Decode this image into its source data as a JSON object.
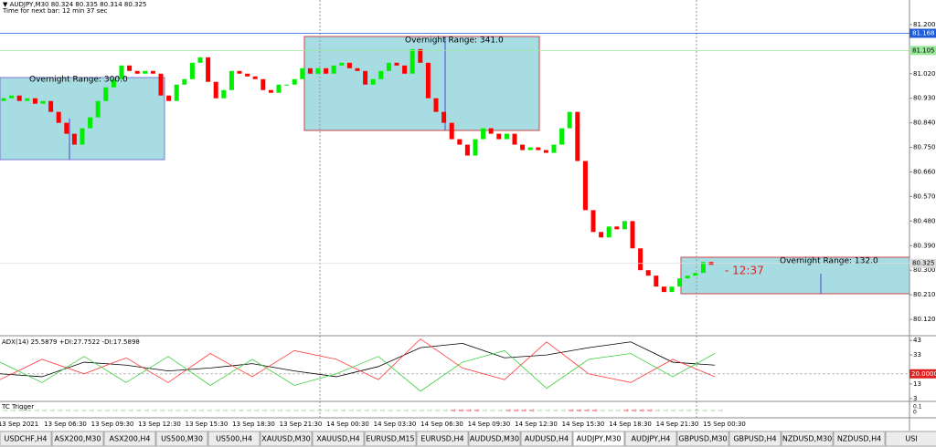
{
  "chart_data": {
    "type": "candlestick",
    "header": "▼ AUDJPY,M30  80.324 80.335 80.314 80.325",
    "subheader": "Time for next bar: 12 min 37 sec",
    "annotations": [
      "Overnight Range: 300.0",
      "Overnight Range: 341.0",
      "Overnight Range: 132.0"
    ],
    "countdown": "- 12:37",
    "up_color": "#00ee00",
    "down_color": "#ff0000",
    "ylim": [
      80.06,
      81.29
    ],
    "yticks": [
      {
        "value": 81.2,
        "label": "81.200"
      },
      {
        "value": 81.02,
        "label": "81.020"
      },
      {
        "value": 80.93,
        "label": "80.930"
      },
      {
        "value": 80.84,
        "label": "80.840"
      },
      {
        "value": 80.75,
        "label": "80.750"
      },
      {
        "value": 80.66,
        "label": "80.660"
      },
      {
        "value": 80.57,
        "label": "80.570"
      },
      {
        "value": 80.48,
        "label": "80.480"
      },
      {
        "value": 80.39,
        "label": "80.390"
      },
      {
        "value": 80.3,
        "label": "80.300"
      },
      {
        "value": 80.21,
        "label": "80.210"
      },
      {
        "value": 80.12,
        "label": "80.120"
      }
    ],
    "price_marks": [
      {
        "value": 81.168,
        "label": "81.168",
        "color": "#1e5bd8"
      },
      {
        "value": 81.105,
        "label": "81.105",
        "color": "#9be89b"
      },
      {
        "value": 80.325,
        "label": "80.325",
        "color": "#dddddd"
      }
    ],
    "candles": [
      [
        80.92,
        80.93
      ],
      [
        80.93,
        80.94
      ],
      [
        80.94,
        80.92
      ],
      [
        80.92,
        80.93
      ],
      [
        80.93,
        80.91
      ],
      [
        80.91,
        80.92
      ],
      [
        80.92,
        80.88
      ],
      [
        80.88,
        80.84
      ],
      [
        80.84,
        80.8
      ],
      [
        80.8,
        80.76
      ],
      [
        80.76,
        80.82
      ],
      [
        80.82,
        80.86
      ],
      [
        80.86,
        80.92
      ],
      [
        80.92,
        80.97
      ],
      [
        80.97,
        81.0
      ],
      [
        81.0,
        81.05
      ],
      [
        81.05,
        81.03
      ],
      [
        81.03,
        81.02
      ],
      [
        81.02,
        81.03
      ],
      [
        81.03,
        81.02
      ],
      [
        81.02,
        80.94
      ],
      [
        80.94,
        80.92
      ],
      [
        80.92,
        80.98
      ],
      [
        80.98,
        81.0
      ],
      [
        81.0,
        81.06
      ],
      [
        81.06,
        81.08
      ],
      [
        81.08,
        80.99
      ],
      [
        80.99,
        80.93
      ],
      [
        80.93,
        80.96
      ],
      [
        80.96,
        81.03
      ],
      [
        81.03,
        81.02
      ],
      [
        81.02,
        81.01
      ],
      [
        81.01,
        81.0
      ],
      [
        81.0,
        80.96
      ],
      [
        80.96,
        80.95
      ],
      [
        80.95,
        80.98
      ],
      [
        80.98,
        80.98
      ],
      [
        80.98,
        81.0
      ],
      [
        81.0,
        81.04
      ],
      [
        81.04,
        81.02
      ],
      [
        81.02,
        81.04
      ],
      [
        81.04,
        81.02
      ],
      [
        81.02,
        81.05
      ],
      [
        81.05,
        81.06
      ],
      [
        81.06,
        81.04
      ],
      [
        81.04,
        81.03
      ],
      [
        81.03,
        80.98
      ],
      [
        80.98,
        81.0
      ],
      [
        81.0,
        81.03
      ],
      [
        81.03,
        81.06
      ],
      [
        81.06,
        81.05
      ],
      [
        81.05,
        81.02
      ],
      [
        81.02,
        81.11
      ],
      [
        81.11,
        81.06
      ],
      [
        81.06,
        80.93
      ],
      [
        80.93,
        80.88
      ],
      [
        80.88,
        80.84
      ],
      [
        80.84,
        80.78
      ],
      [
        80.78,
        80.76
      ],
      [
        80.76,
        80.72
      ],
      [
        80.72,
        80.78
      ],
      [
        80.78,
        80.82
      ],
      [
        80.82,
        80.8
      ],
      [
        80.8,
        80.78
      ],
      [
        80.78,
        80.8
      ],
      [
        80.8,
        80.76
      ],
      [
        80.76,
        80.74
      ],
      [
        80.74,
        80.75
      ],
      [
        80.75,
        80.74
      ],
      [
        80.74,
        80.73
      ],
      [
        80.73,
        80.76
      ],
      [
        80.76,
        80.82
      ],
      [
        80.82,
        80.88
      ],
      [
        80.88,
        80.7
      ],
      [
        80.7,
        80.52
      ],
      [
        80.52,
        80.44
      ],
      [
        80.44,
        80.42
      ],
      [
        80.42,
        80.46
      ],
      [
        80.46,
        80.45
      ],
      [
        80.45,
        80.48
      ],
      [
        80.48,
        80.38
      ],
      [
        80.38,
        80.3
      ],
      [
        80.3,
        80.28
      ],
      [
        80.28,
        80.24
      ],
      [
        80.24,
        80.22
      ],
      [
        80.22,
        80.24
      ],
      [
        80.24,
        80.27
      ],
      [
        80.27,
        80.28
      ],
      [
        80.28,
        80.29
      ],
      [
        80.29,
        80.33
      ],
      [
        80.33,
        80.32
      ]
    ],
    "x_labels": [
      "13 Sep 2021",
      "13 Sep 06:30",
      "13 Sep 09:30",
      "13 Sep 12:30",
      "13 Sep 15:30",
      "13 Sep 18:30",
      "13 Sep 21:30",
      "14 Sep 00:30",
      "14 Sep 03:30",
      "14 Sep 06:30",
      "14 Sep 09:30",
      "14 Sep 12:30",
      "14 Sep 15:30",
      "14 Sep 18:30",
      "14 Sep 21:30",
      "15 Sep 00:30"
    ],
    "adx": {
      "title": "ADX(14) 25.5879 +DI:27.7522 -DI:17.5898",
      "ylim": [
        1,
        45
      ],
      "yticks": [
        43,
        33,
        13,
        3
      ],
      "level": {
        "value": 20,
        "label": "20.0000"
      },
      "series": [
        {
          "name": "ADX",
          "color": "#000000",
          "values": [
            20,
            18,
            28,
            26,
            22,
            24,
            27,
            22,
            18,
            25,
            38,
            41,
            31,
            33,
            38,
            42,
            28,
            26
          ]
        },
        {
          "name": "+DI",
          "color": "#ff3b3b",
          "values": [
            16,
            30,
            20,
            31,
            14,
            34,
            18,
            36,
            30,
            16,
            44,
            24,
            16,
            42,
            20,
            14,
            30,
            18
          ]
        },
        {
          "name": "-DI",
          "color": "#3ccf3c",
          "values": [
            28,
            14,
            32,
            14,
            32,
            12,
            30,
            12,
            20,
            32,
            8,
            28,
            36,
            10,
            30,
            34,
            18,
            34
          ]
        }
      ]
    },
    "trigger": {
      "title": "TC Trigger",
      "yticks": [
        {
          "value": 0.1,
          "label": "0.1"
        },
        {
          "value": 0,
          "label": "0"
        }
      ]
    },
    "tabs": [
      "USDCHF,H4",
      "ASX200,M30",
      "ASX200,H4",
      "US500,M30",
      "US500,H4",
      "XAUUSD,M30",
      "XAUUSD,H4",
      "EURUSD,M15",
      "EURUSD,H4",
      "AUDUSD,M30",
      "AUDUSD,H4",
      "AUDJPY,M30",
      "AUDJPY,H4",
      "GBPUSD,M30",
      "GBPUSD,H4",
      "NZDUSD,M30",
      "NZDUSD,H4",
      "USI"
    ],
    "active_tab": 11
  }
}
